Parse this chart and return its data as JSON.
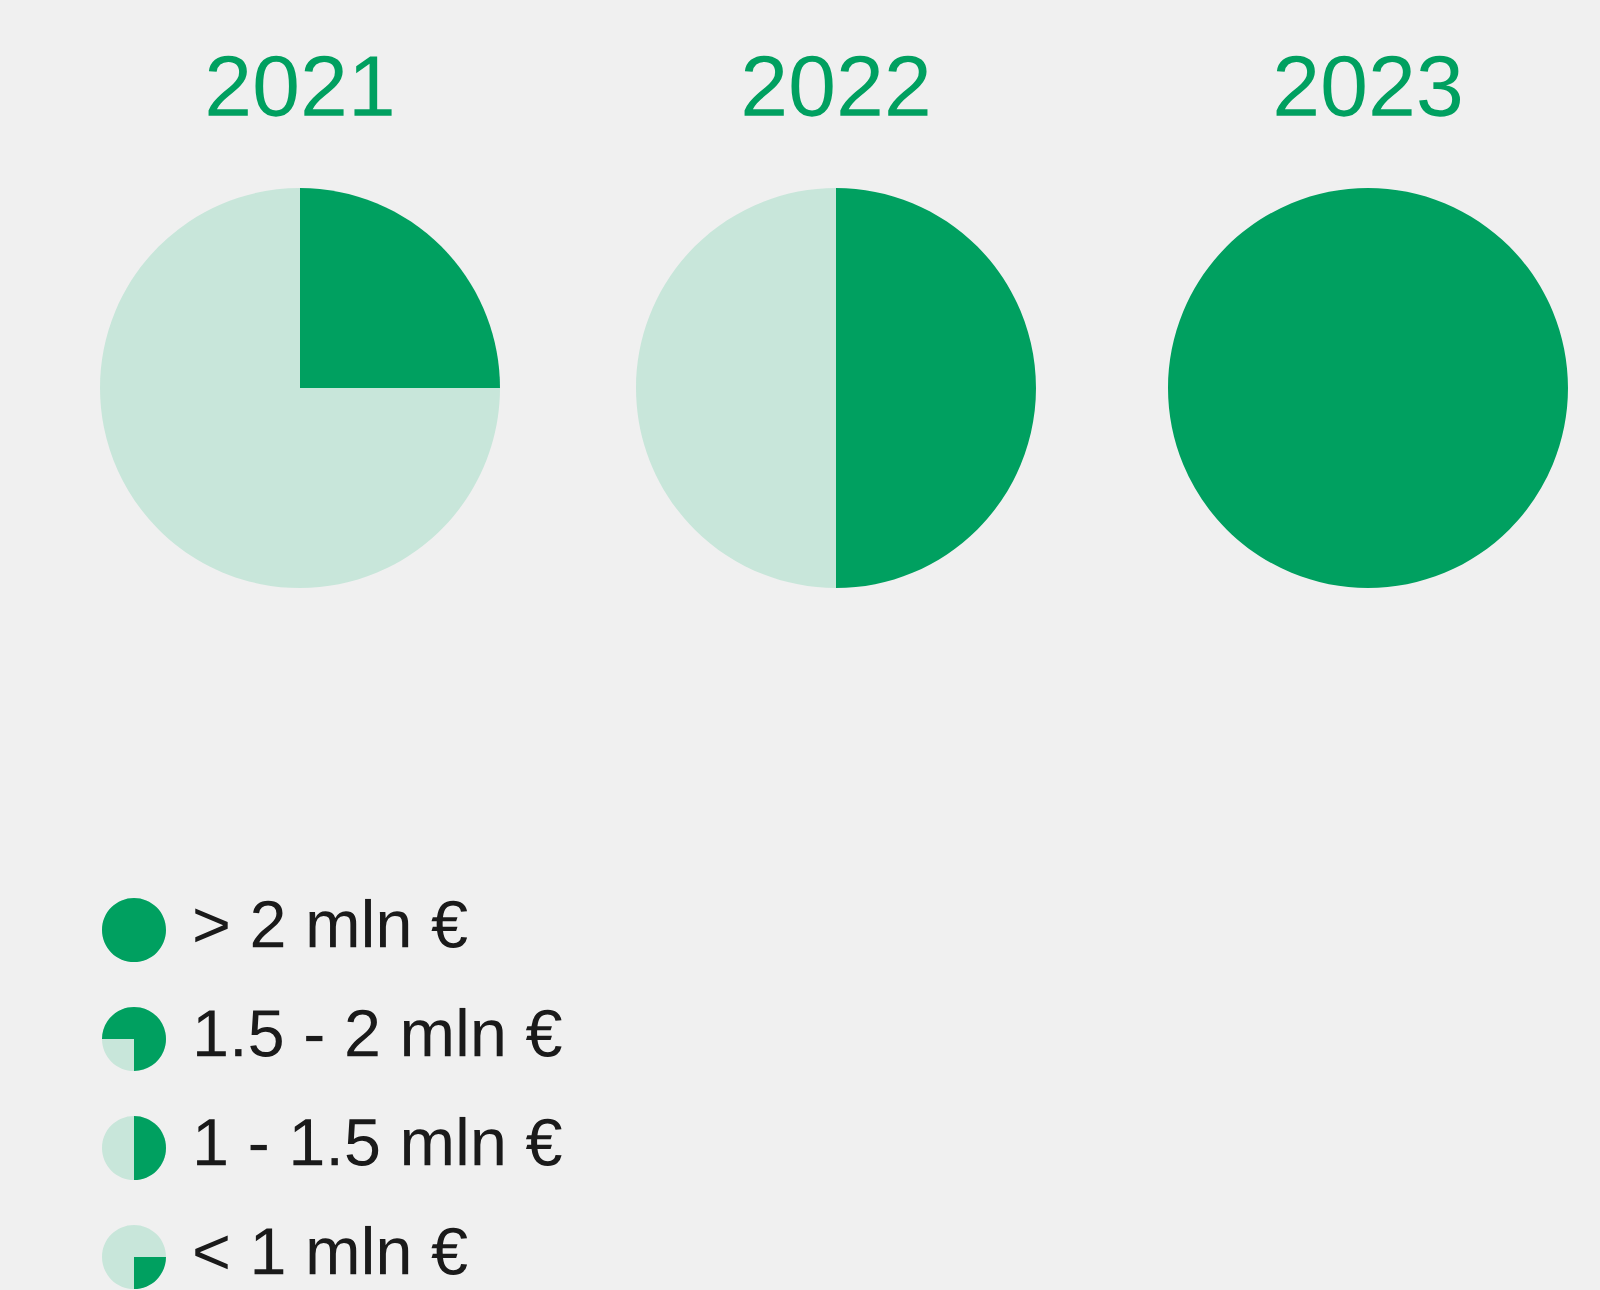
{
  "chart_data": [
    {
      "type": "pie",
      "title": "2021",
      "categories": [
        null,
        null
      ],
      "values": [
        25,
        75
      ],
      "colors": [
        "#00a060",
        "#c8e6da"
      ]
    },
    {
      "type": "pie",
      "title": "2022",
      "categories": [
        null,
        null
      ],
      "values": [
        50,
        50
      ],
      "colors": [
        "#00a060",
        "#c8e6da"
      ]
    },
    {
      "type": "pie",
      "title": "2023",
      "categories": [
        null
      ],
      "values": [
        100
      ],
      "colors": [
        "#00a060"
      ]
    },
    {
      "type": "other",
      "annotations": [
        "> 2 mln €",
        "1.5 - 2 mln €",
        "1 - 1.5 mln €",
        "< 1 mln €"
      ]
    }
  ]
}
